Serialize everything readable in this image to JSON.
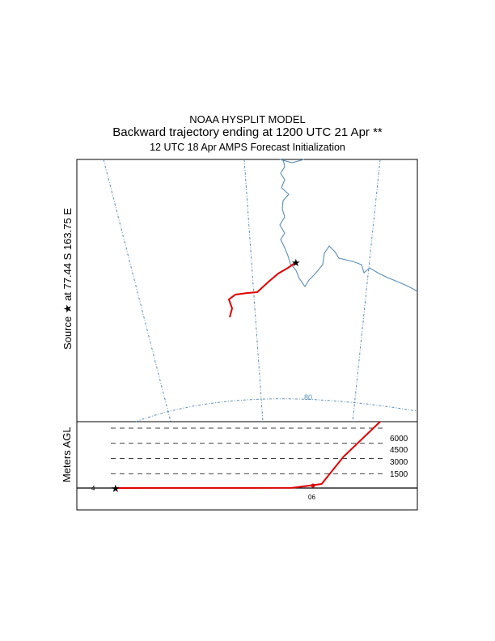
{
  "header": {
    "title": "NOAA HYSPLIT MODEL",
    "subtitle": "Backward trajectory ending at 1200 UTC 21 Apr **",
    "init": "12 UTC 18 Apr    AMPS  Forecast Initialization"
  },
  "side_labels": {
    "source": "Source  ★  at   77.44 S  163.75 E",
    "height_axis": "Meters AGL"
  },
  "colors": {
    "trajectory": "#e00000",
    "map_lines": "#5b8db8",
    "frame": "#000000"
  },
  "chart_data": [
    {
      "type": "line",
      "panel": "trajectory-map",
      "title": "",
      "source_marker": "star",
      "source_location": {
        "lat": -77.44,
        "lon": 163.75
      },
      "latitude_label": "80",
      "map_features": [
        "coastline",
        "meridians",
        "latitude-circle-80"
      ]
    },
    {
      "type": "line",
      "panel": "height-profile",
      "xlabel": "",
      "ylabel": "Meters AGL",
      "ytick_labels": [
        "6000",
        "4500",
        "3000",
        "1500"
      ],
      "yticks": [
        6000,
        4500,
        3000,
        1500
      ],
      "x_marker_labels": [
        "4",
        "06"
      ],
      "series": [
        {
          "values_approx_m": [
            {
              "hours_back": 0,
              "height": 0
            },
            {
              "hours_back": 12,
              "height": 10
            },
            {
              "hours_back": 24,
              "height": 10
            },
            {
              "hours_back": 36,
              "height": 10
            },
            {
              "hours_back": 48,
              "height": 20
            },
            {
              "hours_back": 56,
              "height": 400
            },
            {
              "hours_back": 62,
              "height": 3100
            },
            {
              "hours_back": 72,
              "height": 6700
            }
          ]
        }
      ]
    }
  ]
}
